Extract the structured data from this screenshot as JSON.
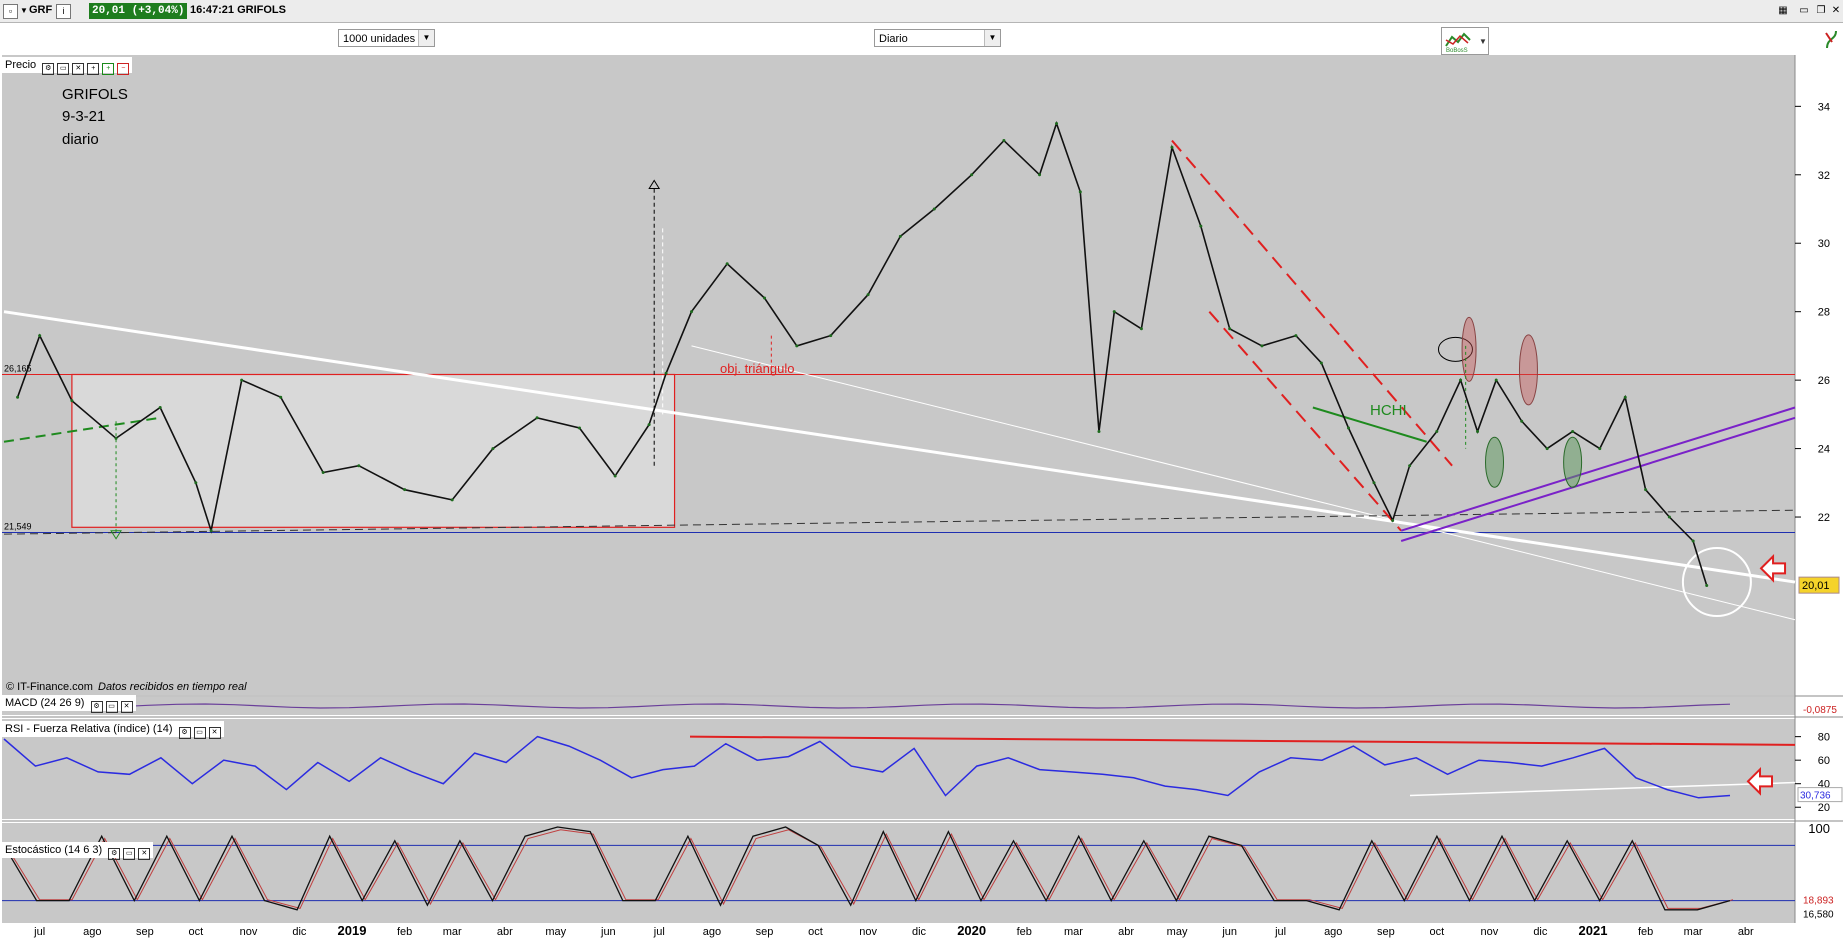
{
  "titlebar": {
    "symbol": "GRF",
    "info_icon": "info-icon",
    "price_change": "20,01 (+3,04%)",
    "time_name": "16:47:21 GRIFOLS"
  },
  "toolbar": {
    "units_select": "1000 unidades",
    "period_select": "Diario"
  },
  "panels": {
    "price_label": "Precio",
    "macd_label": "MACD (24 26 9)",
    "rsi_label": "RSI - Fuerza Relativa (índice) (14)",
    "stoch_label": "Estocástico (14 6 3)",
    "copyright": "© IT-Finance.com",
    "realtime": "Datos recibidos en tiempo real"
  },
  "annotation": {
    "line1": "GRIFOLS",
    "line2": "9-3-21",
    "line3": "diario",
    "target": "obj. triángulo",
    "hchi": "HCHI"
  },
  "chart_data": [
    {
      "type": "line",
      "panel": "price",
      "x_ticks": [
        "jul",
        "ago",
        "sep",
        "oct",
        "nov",
        "dic",
        "2019",
        "feb",
        "mar",
        "abr",
        "may",
        "jun",
        "jul",
        "ago",
        "sep",
        "oct",
        "nov",
        "dic",
        "2020",
        "feb",
        "mar",
        "abr",
        "may",
        "jun",
        "jul",
        "ago",
        "sep",
        "oct",
        "nov",
        "dic",
        "2021",
        "feb",
        "mar",
        "abr"
      ],
      "y_ticks": [
        34,
        32,
        30,
        28,
        26,
        24,
        22
      ],
      "ylim": [
        16.8,
        35.5
      ],
      "x": [
        "2018-06-18",
        "2018-07-01",
        "2018-07-20",
        "2018-08-15",
        "2018-09-10",
        "2018-10-01",
        "2018-10-10",
        "2018-10-28",
        "2018-11-20",
        "2018-12-15",
        "2019-01-05",
        "2019-02-01",
        "2019-03-01",
        "2019-03-25",
        "2019-04-20",
        "2019-05-15",
        "2019-06-05",
        "2019-06-25",
        "2019-07-05",
        "2019-07-20",
        "2019-08-10",
        "2019-09-01",
        "2019-09-20",
        "2019-10-10",
        "2019-11-01",
        "2019-11-20",
        "2019-12-10",
        "2020-01-01",
        "2020-01-20",
        "2020-02-10",
        "2020-02-20",
        "2020-03-05",
        "2020-03-16",
        "2020-03-25",
        "2020-04-10",
        "2020-04-28",
        "2020-05-15",
        "2020-06-01",
        "2020-06-20",
        "2020-07-10",
        "2020-07-25",
        "2020-08-10",
        "2020-08-25",
        "2020-09-05",
        "2020-09-15",
        "2020-10-01",
        "2020-10-15",
        "2020-10-25",
        "2020-11-05",
        "2020-11-20",
        "2020-12-05",
        "2020-12-20",
        "2021-01-05",
        "2021-01-20",
        "2021-02-01",
        "2021-02-15",
        "2021-03-01",
        "2021-03-09"
      ],
      "values": [
        25.5,
        27.3,
        25.4,
        24.3,
        25.2,
        23.0,
        21.6,
        26.0,
        25.5,
        23.3,
        23.5,
        22.8,
        22.5,
        24.0,
        24.9,
        24.6,
        23.2,
        24.7,
        26.2,
        28.0,
        29.4,
        28.4,
        27.0,
        27.3,
        28.5,
        30.2,
        31.0,
        32.0,
        33.0,
        32.0,
        33.5,
        31.5,
        24.5,
        28.0,
        27.5,
        32.8,
        30.5,
        27.5,
        27.0,
        27.3,
        26.5,
        24.6,
        23.0,
        21.9,
        23.5,
        24.5,
        26.0,
        24.5,
        26.0,
        24.8,
        24.0,
        24.5,
        24.0,
        25.5,
        22.8,
        22.0,
        21.3,
        20.0
      ],
      "last_value": "20,01",
      "level_labels": [
        "26,165",
        "21,549"
      ],
      "resistance": 26.165,
      "support": 21.549
    },
    {
      "type": "line",
      "panel": "macd",
      "last_value": "-0,0875"
    },
    {
      "type": "line",
      "panel": "rsi",
      "y_ticks": [
        80,
        60,
        40,
        20
      ],
      "ylim": [
        10,
        95
      ],
      "values": [
        78,
        55,
        62,
        50,
        48,
        62,
        40,
        60,
        55,
        35,
        58,
        42,
        62,
        50,
        40,
        66,
        58,
        80,
        72,
        60,
        45,
        52,
        55,
        74,
        60,
        63,
        76,
        55,
        50,
        70,
        30,
        55,
        62,
        52,
        50,
        48,
        45,
        38,
        35,
        30,
        50,
        62,
        60,
        72,
        56,
        62,
        48,
        60,
        58,
        55,
        62,
        70,
        45,
        35,
        28,
        30
      ],
      "last_value": "30,736"
    },
    {
      "type": "line",
      "panel": "stochastic",
      "y_ticks": [
        100
      ],
      "ylim": [
        0,
        100
      ],
      "values": [
        80,
        20,
        20,
        90,
        20,
        90,
        20,
        90,
        20,
        10,
        90,
        20,
        85,
        15,
        85,
        20,
        90,
        100,
        95,
        20,
        20,
        90,
        15,
        90,
        100,
        80,
        15,
        95,
        20,
        95,
        20,
        85,
        20,
        90,
        20,
        85,
        20,
        90,
        80,
        20,
        20,
        10,
        85,
        20,
        90,
        20,
        90,
        20,
        85,
        20,
        85,
        10,
        10,
        20
      ],
      "last_values": [
        "18,893",
        "16,580"
      ]
    }
  ]
}
